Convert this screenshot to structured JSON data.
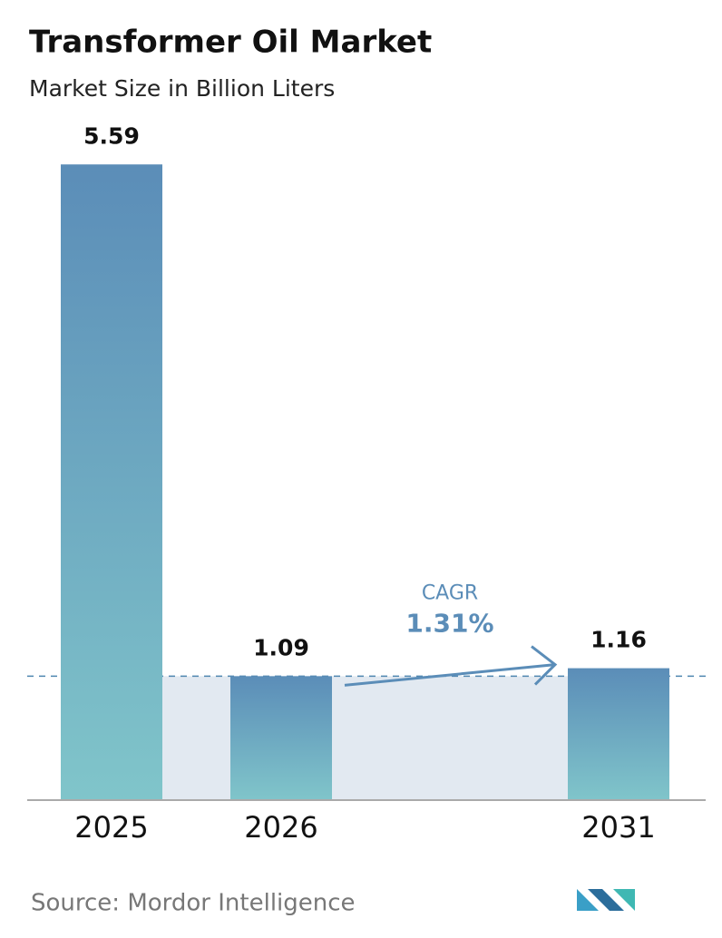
{
  "chart_data": {
    "type": "bar",
    "title": "Transformer Oil Market",
    "subtitle": "Market Size in Billion Liters",
    "categories": [
      "2025",
      "2026",
      "2031"
    ],
    "values": [
      5.59,
      1.09,
      1.16
    ],
    "ylim": [
      0,
      5.6
    ],
    "annotation": {
      "label": "CAGR",
      "value": "1.31%"
    },
    "source": "Source: Mordor Intelligence"
  }
}
